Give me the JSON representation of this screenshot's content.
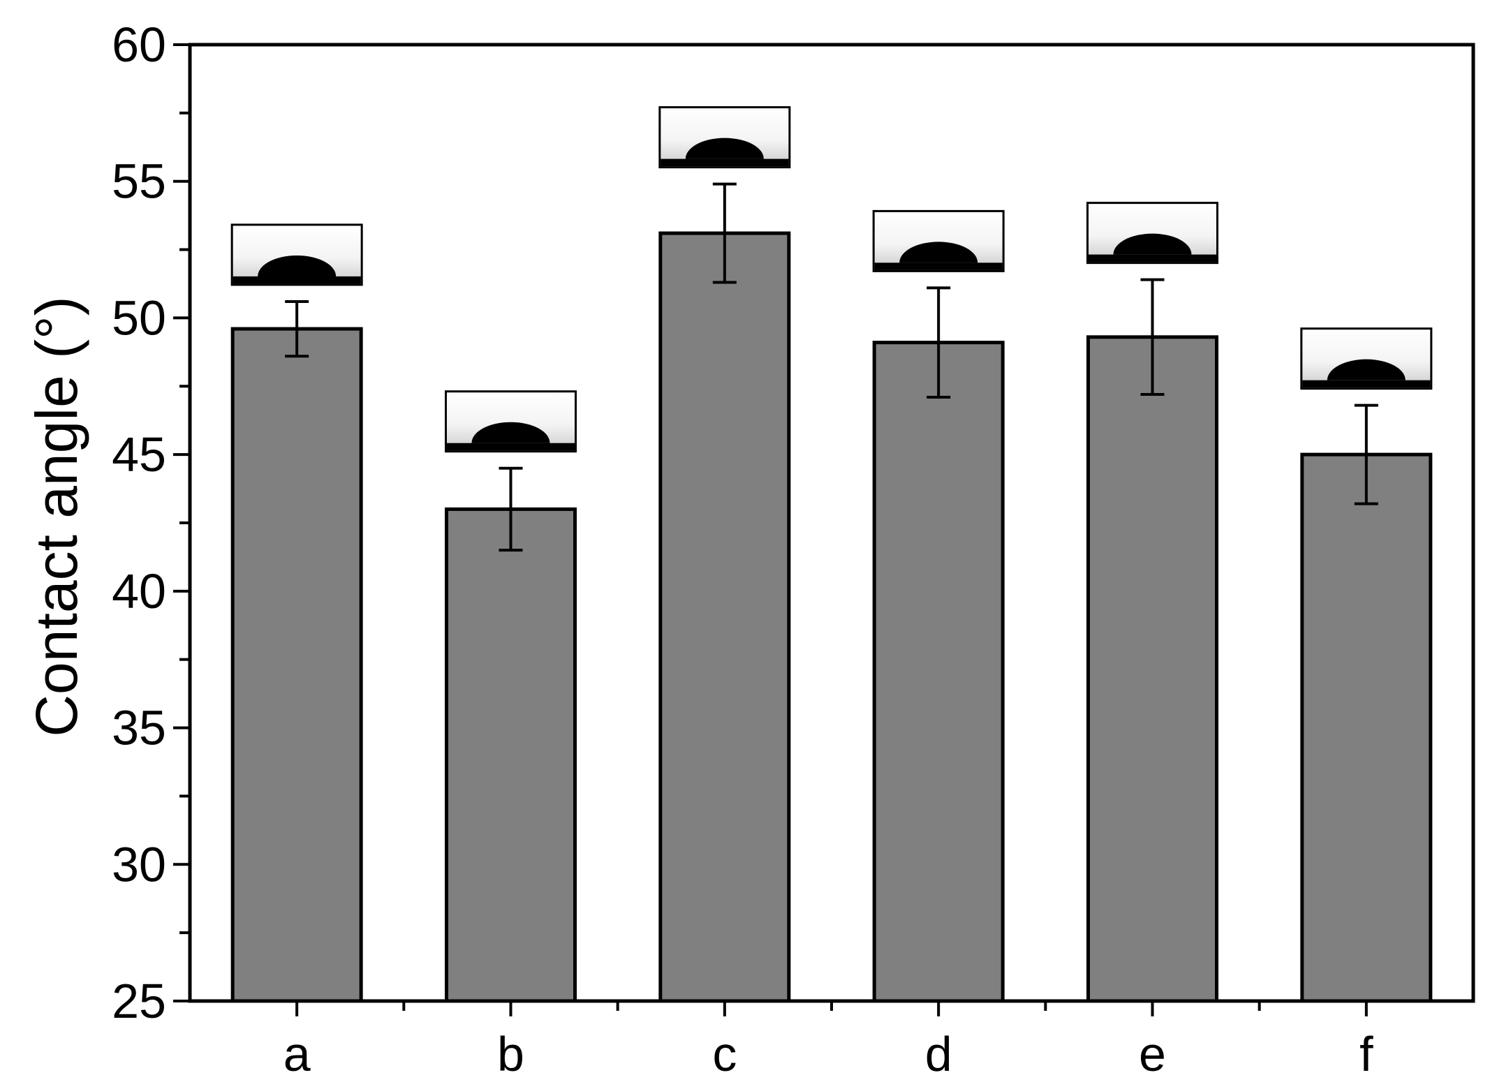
{
  "chart_data": {
    "type": "bar",
    "title": "",
    "xlabel": "",
    "ylabel": "Contact angle (°)",
    "categories": [
      "a",
      "b",
      "c",
      "d",
      "e",
      "f"
    ],
    "values": [
      49.6,
      43.0,
      53.1,
      49.1,
      49.3,
      45.0
    ],
    "errors": [
      1.0,
      1.5,
      1.8,
      2.0,
      2.1,
      1.8
    ],
    "ylim": [
      25,
      60
    ],
    "yticks": [
      "25",
      "30",
      "35",
      "40",
      "45",
      "50",
      "55",
      "60"
    ],
    "grid": false,
    "legend": "none",
    "bar_color": "#808080",
    "inset_images": "water droplet photo above each bar"
  }
}
